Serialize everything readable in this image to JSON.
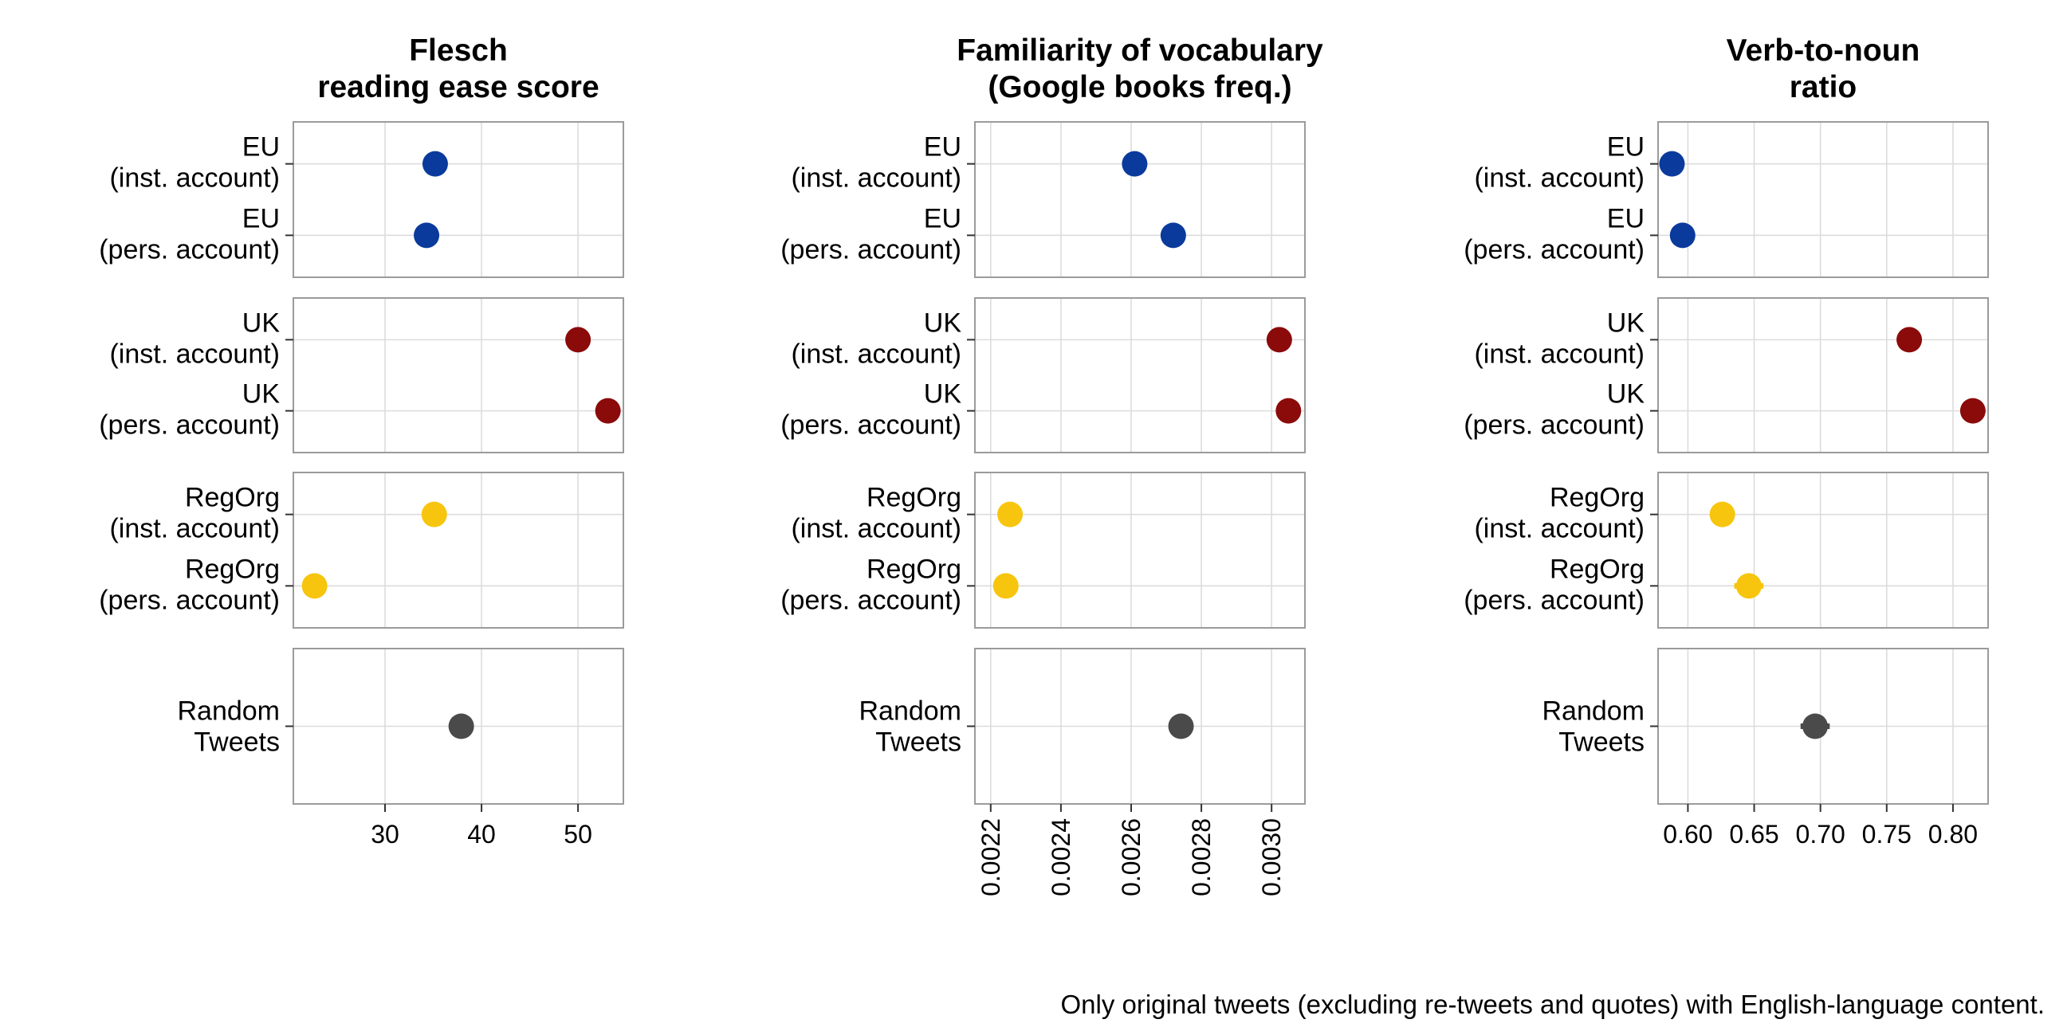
{
  "chart_data": [
    {
      "type": "dot",
      "title": [
        "Flesch",
        "reading ease score"
      ],
      "xticks": [
        30,
        40,
        50
      ],
      "xlim": [
        20.5,
        54.7
      ],
      "tick_rotation": 0,
      "groups": [
        {
          "color": "#0a3a9c",
          "points": [
            {
              "label": [
                "EU",
                "(inst. account)"
              ],
              "value": 35.2,
              "err": 0
            },
            {
              "label": [
                "EU",
                "(pers. account)"
              ],
              "value": 34.3,
              "err": 0
            }
          ]
        },
        {
          "color": "#8b0a0a",
          "points": [
            {
              "label": [
                "UK",
                "(inst. account)"
              ],
              "value": 50.0,
              "err": 0
            },
            {
              "label": [
                "UK",
                "(pers. account)"
              ],
              "value": 53.1,
              "err": 0
            }
          ]
        },
        {
          "color": "#f7c50d",
          "points": [
            {
              "label": [
                "RegOrg",
                "(inst. account)"
              ],
              "value": 35.1,
              "err": 0
            },
            {
              "label": [
                "RegOrg",
                "(pers. account)"
              ],
              "value": 22.7,
              "err": 0
            }
          ]
        },
        {
          "color": "#4a4a4a",
          "points": [
            {
              "label": [
                "Random",
                "Tweets"
              ],
              "value": 37.9,
              "err": 0.2
            }
          ]
        }
      ]
    },
    {
      "type": "dot",
      "title": [
        "Familiarity of vocabulary",
        "(Google books freq.)"
      ],
      "xticks": [
        "0.0022",
        "0.0024",
        "0.0026",
        "0.0028",
        "0.0030"
      ],
      "xlim": [
        0.002155,
        0.003095
      ],
      "tick_rotation": -90,
      "groups": [
        {
          "color": "#0a3a9c",
          "points": [
            {
              "label": [
                "EU",
                "(inst. account)"
              ],
              "value": 0.00261,
              "err": 0
            },
            {
              "label": [
                "EU",
                "(pers. account)"
              ],
              "value": 0.00272,
              "err": 0
            }
          ]
        },
        {
          "color": "#8b0a0a",
          "points": [
            {
              "label": [
                "UK",
                "(inst. account)"
              ],
              "value": 0.003022,
              "err": 0
            },
            {
              "label": [
                "UK",
                "(pers. account)"
              ],
              "value": 0.003048,
              "err": 0
            }
          ]
        },
        {
          "color": "#f7c50d",
          "points": [
            {
              "label": [
                "RegOrg",
                "(inst. account)"
              ],
              "value": 0.002255,
              "err": 0
            },
            {
              "label": [
                "RegOrg",
                "(pers. account)"
              ],
              "value": 0.002243,
              "err": 0
            }
          ]
        },
        {
          "color": "#4a4a4a",
          "points": [
            {
              "label": [
                "Random",
                "Tweets"
              ],
              "value": 0.002742,
              "err": 3.5e-05
            }
          ]
        }
      ]
    },
    {
      "type": "dot",
      "title": [
        "Verb-to-noun",
        "ratio"
      ],
      "xticks": [
        "0.60",
        "0.65",
        "0.70",
        "0.75",
        "0.80"
      ],
      "xlim": [
        0.5775,
        0.8265
      ],
      "tick_rotation": 0,
      "groups": [
        {
          "color": "#0a3a9c",
          "points": [
            {
              "label": [
                "EU",
                "(inst. account)"
              ],
              "value": 0.588,
              "err": 0
            },
            {
              "label": [
                "EU",
                "(pers. account)"
              ],
              "value": 0.596,
              "err": 0
            }
          ]
        },
        {
          "color": "#8b0a0a",
          "points": [
            {
              "label": [
                "UK",
                "(inst. account)"
              ],
              "value": 0.767,
              "err": 0
            },
            {
              "label": [
                "UK",
                "(pers. account)"
              ],
              "value": 0.815,
              "err": 0
            }
          ]
        },
        {
          "color": "#f7c50d",
          "points": [
            {
              "label": [
                "RegOrg",
                "(inst. account)"
              ],
              "value": 0.626,
              "err": 0
            },
            {
              "label": [
                "RegOrg",
                "(pers. account)"
              ],
              "value": 0.646,
              "err": 0.011
            }
          ]
        },
        {
          "color": "#4a4a4a",
          "points": [
            {
              "label": [
                "Random",
                "Tweets"
              ],
              "value": 0.696,
              "err": 0.011
            }
          ]
        }
      ]
    }
  ],
  "caption": "Only original tweets (excluding re-tweets and quotes) with English-language content."
}
